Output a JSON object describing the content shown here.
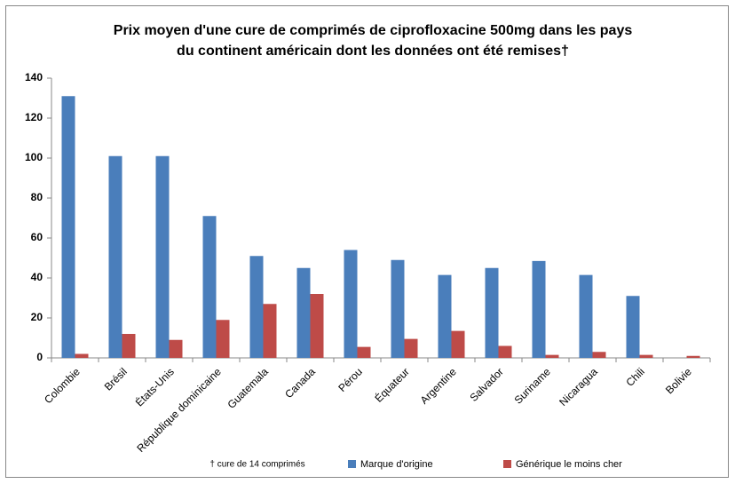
{
  "chart_data": {
    "type": "bar",
    "title": [
      "Prix moyen d'une cure de comprimés de ciprofloxacine 500mg dans les pays",
      "du continent américain dont les données ont été remises†"
    ],
    "footnote": "† cure de 14 comprimés",
    "categories": [
      "Colombie",
      "Brésil",
      "États-Unis",
      "République dominicaine",
      "Guatemala",
      "Canada",
      "Pérou",
      "Équateur",
      "Argentine",
      "Salvador",
      "Suriname",
      "Nicaragua",
      "Chili",
      "Bolivie"
    ],
    "series": [
      {
        "name": "Marque d'origine",
        "color": "#4a7ebb",
        "values": [
          131,
          101,
          101,
          71,
          51,
          45,
          54,
          49,
          41.5,
          45,
          48.5,
          41.5,
          31,
          null
        ]
      },
      {
        "name": "Générique le moins cher",
        "color": "#be4b48",
        "values": [
          2,
          12,
          9,
          19,
          27,
          32,
          5.5,
          9.5,
          13.5,
          6,
          1.5,
          3,
          1.5,
          1
        ]
      }
    ],
    "ylim": [
      0,
      140
    ],
    "yticks": [
      0,
      20,
      40,
      60,
      80,
      100,
      120,
      140
    ],
    "grid": false,
    "legend": "bottom"
  }
}
